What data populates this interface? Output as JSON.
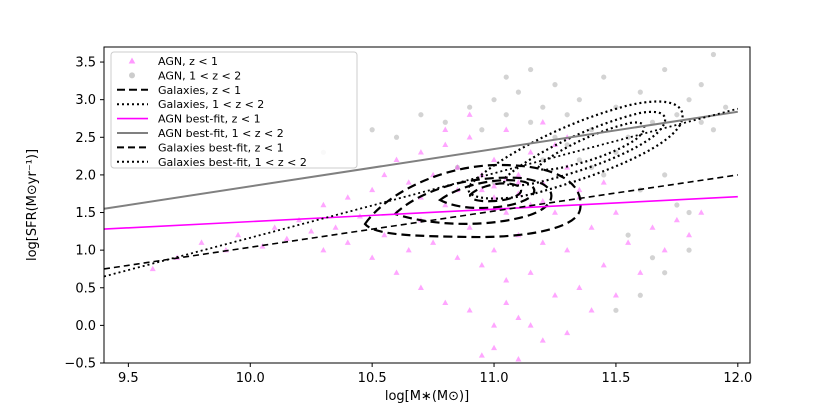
{
  "chart_data": {
    "type": "scatter",
    "xlabel": "log[M∗(M⊙)]",
    "ylabel": "log[SFR(M⊙yr⁻¹)]",
    "xlim": [
      9.4,
      12.05
    ],
    "ylim": [
      -0.5,
      3.7
    ],
    "x_ticks": [
      "9.5",
      "10.0",
      "10.5",
      "11.0",
      "11.5",
      "12.0"
    ],
    "y_ticks": [
      "−0.5",
      "0.0",
      "0.5",
      "1.0",
      "1.5",
      "2.0",
      "2.5",
      "3.0",
      "3.5"
    ],
    "grid": false,
    "legend_position": "upper-left",
    "legend": [
      "AGN, z < 1",
      "AGN, 1 < z < 2",
      "Galaxies, z < 1",
      "Galaxies, 1 < z < 2",
      "AGN best-fit, z < 1",
      "AGN best-fit, 1 < z < 2",
      "Galaxies best-fit, z < 1",
      "Galaxies best-fit, 1 < z < 2"
    ],
    "colors": {
      "agn_low": "#ff00ff",
      "agn_high": "#808080",
      "galaxies": "#000000"
    },
    "best_fit_lines": [
      {
        "legend_index": 4,
        "x": [
          9.4,
          12.0
        ],
        "y": [
          1.28,
          1.71
        ]
      },
      {
        "legend_index": 5,
        "x": [
          9.4,
          12.0
        ],
        "y": [
          1.55,
          2.84
        ]
      },
      {
        "legend_index": 6,
        "x": [
          9.4,
          12.0
        ],
        "y": [
          0.75,
          2.0
        ]
      },
      {
        "legend_index": 7,
        "x": [
          9.4,
          12.0
        ],
        "y": [
          0.65,
          2.88
        ]
      }
    ],
    "scatter_agn_low_z": {
      "note_shape": "triangle",
      "x": [
        9.6,
        9.7,
        9.8,
        9.9,
        9.95,
        10.05,
        10.1,
        10.15,
        10.2,
        10.25,
        10.3,
        10.3,
        10.35,
        10.4,
        10.4,
        10.45,
        10.5,
        10.5,
        10.55,
        10.55,
        10.6,
        10.6,
        10.6,
        10.65,
        10.65,
        10.7,
        10.7,
        10.7,
        10.75,
        10.75,
        10.8,
        10.8,
        10.8,
        10.85,
        10.85,
        10.9,
        10.9,
        10.9,
        10.95,
        10.95,
        11.0,
        11.0,
        11.0,
        11.0,
        11.05,
        11.05,
        11.05,
        11.1,
        11.1,
        11.1,
        11.15,
        11.15,
        11.15,
        11.2,
        11.2,
        11.2,
        11.25,
        11.25,
        11.3,
        11.3,
        11.3,
        11.35,
        11.35,
        11.4,
        11.4,
        11.45,
        11.45,
        11.5,
        11.5,
        11.55,
        11.6,
        11.65,
        11.7,
        11.75,
        11.8,
        11.85,
        10.95,
        11.0,
        11.05,
        11.1,
        11.15,
        11.2,
        10.8,
        10.9,
        11.25,
        11.3,
        11.0,
        11.05,
        11.1,
        10.85,
        11.2,
        10.7,
        11.35,
        11.0,
        11.1,
        10.95
      ],
      "y": [
        0.75,
        0.9,
        1.1,
        1.0,
        1.2,
        1.05,
        1.3,
        1.15,
        1.4,
        1.25,
        1.0,
        1.6,
        1.3,
        1.1,
        1.7,
        1.45,
        0.9,
        1.8,
        1.2,
        2.0,
        0.7,
        1.5,
        2.2,
        1.0,
        1.9,
        0.5,
        1.4,
        2.3,
        1.1,
        2.0,
        0.3,
        1.6,
        2.4,
        0.9,
        2.1,
        0.2,
        1.3,
        2.5,
        0.8,
        1.8,
        0.0,
        1.0,
        1.7,
        2.2,
        0.6,
        1.5,
        2.6,
        0.1,
        1.2,
        2.0,
        0.7,
        1.6,
        2.3,
        -0.2,
        1.1,
        1.9,
        0.4,
        1.5,
        -0.1,
        1.0,
        2.1,
        0.5,
        1.7,
        0.2,
        1.3,
        0.8,
        1.9,
        0.4,
        1.5,
        1.1,
        0.7,
        1.3,
        1.0,
        1.4,
        1.2,
        1.5,
        -0.4,
        -0.3,
        0.3,
        -0.45,
        0.0,
        2.7,
        2.6,
        2.8,
        2.4,
        2.5,
        1.85,
        1.95,
        1.75,
        1.8,
        1.65,
        1.7,
        1.8,
        1.55,
        1.9,
        2.0
      ]
    },
    "scatter_agn_high_z": {
      "note_shape": "circle",
      "x": [
        10.3,
        10.5,
        10.6,
        10.7,
        10.8,
        10.9,
        10.95,
        11.0,
        11.05,
        11.1,
        11.15,
        11.2,
        11.25,
        11.3,
        11.35,
        11.4,
        11.45,
        11.5,
        11.55,
        11.6,
        11.65,
        11.7,
        11.75,
        11.8,
        11.85,
        11.9,
        11.95,
        11.2,
        11.3,
        11.4,
        11.5,
        11.6,
        11.7,
        11.8,
        11.05,
        11.15,
        11.25,
        11.35,
        11.45,
        11.55,
        11.65,
        11.75,
        11.85,
        11.9,
        11.0,
        10.85,
        11.6,
        11.7,
        11.8,
        11.5
      ],
      "y": [
        2.3,
        2.6,
        2.5,
        2.8,
        2.7,
        2.9,
        2.6,
        3.0,
        2.8,
        3.1,
        2.7,
        2.9,
        3.2,
        2.8,
        3.0,
        2.6,
        3.3,
        2.9,
        2.5,
        3.1,
        2.7,
        3.4,
        2.8,
        3.0,
        3.2,
        2.6,
        2.9,
        2.2,
        2.4,
        2.1,
        2.3,
        1.8,
        2.0,
        1.5,
        3.3,
        3.4,
        2.5,
        2.2,
        2.0,
        1.2,
        0.9,
        1.6,
        2.7,
        3.6,
        1.9,
        2.1,
        0.4,
        0.7,
        1.0,
        0.2
      ]
    }
  }
}
